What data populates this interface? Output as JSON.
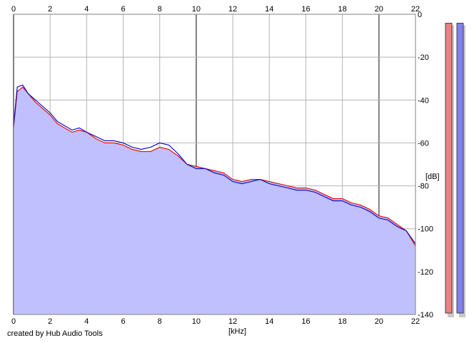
{
  "chart_data": {
    "type": "area",
    "xlabel": "[kHz]",
    "ylabel": "[dB]",
    "xlim": [
      0,
      22
    ],
    "ylim": [
      -140,
      0
    ],
    "x_ticks": [
      "0",
      "2",
      "4",
      "6",
      "8",
      "10",
      "12",
      "14",
      "16",
      "18",
      "20",
      "22"
    ],
    "y_ticks": [
      "0",
      "-20",
      "-40",
      "-60",
      "-80",
      "-100",
      "-120",
      "-140"
    ],
    "grid": true,
    "series": [
      {
        "color": "#e01010",
        "x": [
          0,
          0.2,
          0.5,
          0.8,
          1.2,
          1.6,
          2.0,
          2.4,
          2.8,
          3.2,
          3.6,
          4.0,
          4.5,
          5.0,
          5.5,
          6.0,
          6.5,
          7.0,
          7.5,
          8.0,
          8.5,
          9.0,
          9.5,
          10.0,
          10.5,
          11.0,
          11.5,
          12.0,
          12.5,
          13.0,
          13.5,
          14.0,
          14.5,
          15.0,
          15.5,
          16.0,
          16.5,
          17.0,
          17.5,
          18.0,
          18.5,
          19.0,
          19.5,
          20.0,
          20.5,
          21.0,
          21.5,
          22.0
        ],
        "values": [
          -53,
          -36,
          -34,
          -37,
          -41,
          -44,
          -47,
          -51,
          -53,
          -55,
          -54,
          -55,
          -58,
          -60,
          -60,
          -61,
          -63,
          -64,
          -64,
          -62,
          -63,
          -66,
          -70,
          -71,
          -72,
          -73,
          -74,
          -77,
          -78,
          -77,
          -77,
          -78,
          -79,
          -80,
          -81,
          -81,
          -82,
          -84,
          -86,
          -86,
          -88,
          -89,
          -91,
          -94,
          -95,
          -98,
          -101,
          -108
        ]
      },
      {
        "color": "#1010c0",
        "x": [
          0,
          0.2,
          0.5,
          0.8,
          1.2,
          1.6,
          2.0,
          2.4,
          2.8,
          3.2,
          3.6,
          4.0,
          4.5,
          5.0,
          5.5,
          6.0,
          6.5,
          7.0,
          7.5,
          8.0,
          8.5,
          9.0,
          9.5,
          10.0,
          10.5,
          11.0,
          11.5,
          12.0,
          12.5,
          13.0,
          13.5,
          14.0,
          14.5,
          15.0,
          15.5,
          16.0,
          16.5,
          17.0,
          17.5,
          18.0,
          18.5,
          19.0,
          19.5,
          20.0,
          20.5,
          21.0,
          21.5,
          22.0
        ],
        "values": [
          -52,
          -34,
          -33,
          -37,
          -40,
          -43,
          -46,
          -50,
          -52,
          -54,
          -53,
          -55,
          -57,
          -59,
          -59,
          -60,
          -62,
          -63,
          -62,
          -60,
          -61,
          -65,
          -70,
          -72,
          -72,
          -74,
          -75,
          -78,
          -79,
          -78,
          -77,
          -79,
          -80,
          -81,
          -82,
          -82,
          -83,
          -85,
          -87,
          -87,
          -89,
          -90,
          -92,
          -95,
          -96,
          -99,
          -101,
          -107
        ]
      }
    ]
  },
  "level_meters": [
    {
      "color": "#f08080",
      "level": 0.97
    },
    {
      "color": "#8080f0",
      "level": 0.97
    }
  ],
  "credit": "created by Hub Audio Tools"
}
